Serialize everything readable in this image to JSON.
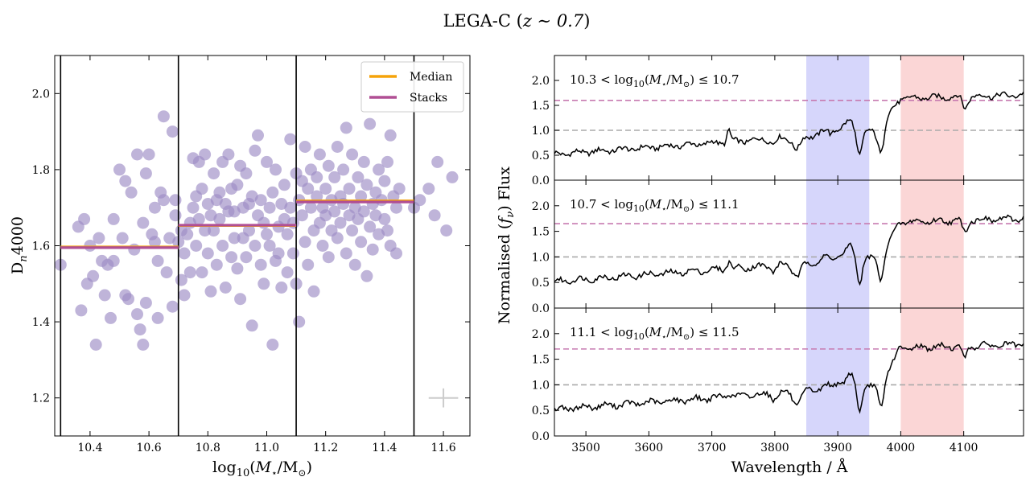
{
  "figure": {
    "title": "LEGA-C (z ∼ 0.7)"
  },
  "chart_data": [
    {
      "type": "scatter",
      "xlabel": "log10(M⋆/M⊙)",
      "ylabel": "Dn4000",
      "xlim": [
        10.28,
        11.69
      ],
      "ylim": [
        1.1,
        2.1
      ],
      "xticks": [
        10.4,
        10.6,
        10.8,
        11.0,
        11.2,
        11.4,
        11.6
      ],
      "yticks": [
        1.2,
        1.4,
        1.6,
        1.8,
        2.0
      ],
      "bin_edges": [
        10.3,
        10.7,
        11.1,
        11.5
      ],
      "points": [
        [
          10.3,
          1.55
        ],
        [
          10.36,
          1.65
        ],
        [
          10.37,
          1.43
        ],
        [
          10.38,
          1.67
        ],
        [
          10.39,
          1.5
        ],
        [
          10.4,
          1.6
        ],
        [
          10.41,
          1.52
        ],
        [
          10.42,
          1.34
        ],
        [
          10.43,
          1.62
        ],
        [
          10.44,
          1.56
        ],
        [
          10.45,
          1.47
        ],
        [
          10.46,
          1.55
        ],
        [
          10.47,
          1.41
        ],
        [
          10.48,
          1.56
        ],
        [
          10.48,
          1.67
        ],
        [
          10.5,
          1.8
        ],
        [
          10.51,
          1.62
        ],
        [
          10.52,
          1.47
        ],
        [
          10.52,
          1.77
        ],
        [
          10.53,
          1.46
        ],
        [
          10.54,
          1.74
        ],
        [
          10.55,
          1.59
        ],
        [
          10.56,
          1.42
        ],
        [
          10.56,
          1.84
        ],
        [
          10.57,
          1.38
        ],
        [
          10.58,
          1.66
        ],
        [
          10.58,
          1.34
        ],
        [
          10.59,
          1.45
        ],
        [
          10.59,
          1.79
        ],
        [
          10.6,
          1.84
        ],
        [
          10.61,
          1.63
        ],
        [
          10.62,
          1.61
        ],
        [
          10.62,
          1.7
        ],
        [
          10.63,
          1.56
        ],
        [
          10.63,
          1.41
        ],
        [
          10.64,
          1.74
        ],
        [
          10.65,
          1.94
        ],
        [
          10.65,
          1.72
        ],
        [
          10.66,
          1.53
        ],
        [
          10.67,
          1.62
        ],
        [
          10.68,
          1.9
        ],
        [
          10.68,
          1.44
        ],
        [
          10.69,
          1.72
        ],
        [
          10.69,
          1.68
        ],
        [
          10.7,
          1.61
        ],
        [
          10.71,
          1.64
        ],
        [
          10.71,
          1.51
        ],
        [
          10.72,
          1.47
        ],
        [
          10.72,
          1.58
        ],
        [
          10.73,
          1.63
        ],
        [
          10.74,
          1.53
        ],
        [
          10.74,
          1.66
        ],
        [
          10.75,
          1.83
        ],
        [
          10.75,
          1.7
        ],
        [
          10.76,
          1.6
        ],
        [
          10.76,
          1.73
        ],
        [
          10.77,
          1.67
        ],
        [
          10.77,
          1.82
        ],
        [
          10.78,
          1.75
        ],
        [
          10.78,
          1.53
        ],
        [
          10.79,
          1.64
        ],
        [
          10.79,
          1.84
        ],
        [
          10.8,
          1.71
        ],
        [
          10.8,
          1.58
        ],
        [
          10.81,
          1.68
        ],
        [
          10.81,
          1.48
        ],
        [
          10.82,
          1.79
        ],
        [
          10.82,
          1.64
        ],
        [
          10.83,
          1.72
        ],
        [
          10.83,
          1.55
        ],
        [
          10.84,
          1.67
        ],
        [
          10.84,
          1.74
        ],
        [
          10.85,
          1.82
        ],
        [
          10.85,
          1.6
        ],
        [
          10.86,
          1.49
        ],
        [
          10.86,
          1.71
        ],
        [
          10.87,
          1.69
        ],
        [
          10.87,
          1.84
        ],
        [
          10.88,
          1.57
        ],
        [
          10.88,
          1.75
        ],
        [
          10.89,
          1.62
        ],
        [
          10.89,
          1.69
        ],
        [
          10.9,
          1.76
        ],
        [
          10.9,
          1.54
        ],
        [
          10.91,
          1.81
        ],
        [
          10.91,
          1.46
        ],
        [
          10.92,
          1.7
        ],
        [
          10.92,
          1.62
        ],
        [
          10.93,
          1.79
        ],
        [
          10.93,
          1.57
        ],
        [
          10.94,
          1.71
        ],
        [
          10.94,
          1.64
        ],
        [
          10.95,
          1.39
        ],
        [
          10.95,
          1.73
        ],
        [
          10.96,
          1.85
        ],
        [
          10.96,
          1.6
        ],
        [
          10.97,
          1.89
        ],
        [
          10.97,
          1.68
        ],
        [
          10.98,
          1.55
        ],
        [
          10.98,
          1.72
        ],
        [
          10.99,
          1.66
        ],
        [
          10.99,
          1.5
        ],
        [
          11.0,
          1.82
        ],
        [
          11.0,
          1.63
        ],
        [
          11.01,
          1.7
        ],
        [
          11.01,
          1.6
        ],
        [
          11.02,
          1.34
        ],
        [
          11.02,
          1.74
        ],
        [
          11.03,
          1.56
        ],
        [
          11.03,
          1.8
        ],
        [
          11.04,
          1.65
        ],
        [
          11.04,
          1.58
        ],
        [
          11.05,
          1.71
        ],
        [
          11.05,
          1.49
        ],
        [
          11.06,
          1.76
        ],
        [
          11.06,
          1.67
        ],
        [
          11.07,
          1.53
        ],
        [
          11.07,
          1.63
        ],
        [
          11.08,
          1.88
        ],
        [
          11.08,
          1.7
        ],
        [
          11.09,
          1.58
        ],
        [
          11.09,
          1.66
        ],
        [
          11.1,
          1.79
        ],
        [
          11.1,
          1.5
        ],
        [
          11.11,
          1.72
        ],
        [
          11.11,
          1.4
        ],
        [
          11.12,
          1.68
        ],
        [
          11.12,
          1.77
        ],
        [
          11.13,
          1.61
        ],
        [
          11.13,
          1.86
        ],
        [
          11.14,
          1.75
        ],
        [
          11.14,
          1.55
        ],
        [
          11.15,
          1.7
        ],
        [
          11.15,
          1.8
        ],
        [
          11.16,
          1.64
        ],
        [
          11.16,
          1.48
        ],
        [
          11.17,
          1.73
        ],
        [
          11.17,
          1.78
        ],
        [
          11.18,
          1.66
        ],
        [
          11.18,
          1.84
        ],
        [
          11.19,
          1.7
        ],
        [
          11.19,
          1.6
        ],
        [
          11.2,
          1.75
        ],
        [
          11.2,
          1.68
        ],
        [
          11.21,
          1.81
        ],
        [
          11.21,
          1.57
        ],
        [
          11.22,
          1.72
        ],
        [
          11.22,
          1.64
        ],
        [
          11.23,
          1.78
        ],
        [
          11.23,
          1.69
        ],
        [
          11.24,
          1.86
        ],
        [
          11.24,
          1.62
        ],
        [
          11.25,
          1.73
        ],
        [
          11.25,
          1.66
        ],
        [
          11.26,
          1.8
        ],
        [
          11.26,
          1.71
        ],
        [
          11.27,
          1.58
        ],
        [
          11.27,
          1.91
        ],
        [
          11.28,
          1.68
        ],
        [
          11.28,
          1.75
        ],
        [
          11.29,
          1.64
        ],
        [
          11.29,
          1.84
        ],
        [
          11.3,
          1.7
        ],
        [
          11.3,
          1.55
        ],
        [
          11.31,
          1.78
        ],
        [
          11.31,
          1.67
        ],
        [
          11.32,
          1.73
        ],
        [
          11.32,
          1.61
        ],
        [
          11.33,
          1.69
        ],
        [
          11.33,
          1.82
        ],
        [
          11.34,
          1.76
        ],
        [
          11.34,
          1.52
        ],
        [
          11.35,
          1.65
        ],
        [
          11.35,
          1.92
        ],
        [
          11.36,
          1.71
        ],
        [
          11.36,
          1.59
        ],
        [
          11.37,
          1.74
        ],
        [
          11.37,
          1.68
        ],
        [
          11.38,
          1.8
        ],
        [
          11.38,
          1.63
        ],
        [
          11.39,
          1.72
        ],
        [
          11.4,
          1.67
        ],
        [
          11.4,
          1.77
        ],
        [
          11.41,
          1.82
        ],
        [
          11.41,
          1.64
        ],
        [
          11.42,
          1.89
        ],
        [
          11.42,
          1.6
        ],
        [
          11.43,
          1.73
        ],
        [
          11.44,
          1.7
        ],
        [
          11.44,
          1.58
        ],
        [
          11.45,
          1.75
        ],
        [
          11.5,
          1.7
        ],
        [
          11.52,
          1.72
        ],
        [
          11.55,
          1.75
        ],
        [
          11.57,
          1.68
        ],
        [
          11.58,
          1.82
        ],
        [
          11.61,
          1.64
        ],
        [
          11.63,
          1.78
        ]
      ],
      "series": [
        {
          "name": "Median",
          "color": "#f5a30a",
          "segments": [
            [
              10.3,
              10.7,
              1.597
            ],
            [
              10.7,
              11.1,
              1.653
            ],
            [
              11.1,
              11.5,
              1.718
            ]
          ]
        },
        {
          "name": "Stacks",
          "color": "#b04f94",
          "segments": [
            [
              10.3,
              10.7,
              1.595
            ],
            [
              10.7,
              11.1,
              1.654
            ],
            [
              11.1,
              11.5,
              1.715
            ]
          ]
        }
      ],
      "legend_position": "top-right",
      "point_color": "#9d8cc4",
      "errorbar": {
        "x": 11.6,
        "y": 1.2,
        "xerr": 0.05,
        "yerr": 0.025,
        "color": "#cccccc"
      }
    },
    {
      "type": "line",
      "xlabel": "Wavelength / Å",
      "ylabel": "Normalised (fν) Flux",
      "xlim": [
        3450,
        4195
      ],
      "xticks": [
        3500,
        3600,
        3700,
        3800,
        3900,
        4000,
        4100
      ],
      "yticks": [
        0.0,
        0.5,
        1.0,
        1.5,
        2.0
      ],
      "shaded_bands": [
        {
          "x0": 3850,
          "x1": 3950,
          "color": "#d6d6fb"
        },
        {
          "x0": 4000,
          "x1": 4100,
          "color": "#fbd6d6"
        }
      ],
      "panels": [
        {
          "label": "10.3 < log10(M⋆/M⊙) ≤ 10.7",
          "label_parts": [
            "10.3 < log",
            "10",
            "(M",
            "⋆",
            "/M",
            "⊙",
            ") ≤ 10.7"
          ],
          "ylim": [
            0,
            2.5
          ],
          "ref_line": 1.0,
          "stack_line": 1.6,
          "k": 0.0
        },
        {
          "label": "10.7 < log10(M⋆/M⊙) ≤ 11.1",
          "label_parts": [
            "10.7 < log",
            "10",
            "(M",
            "⋆",
            "/M",
            "⊙",
            ") ≤ 11.1"
          ],
          "ylim": [
            0,
            2.5
          ],
          "ref_line": 1.0,
          "stack_line": 1.65,
          "k": 0.5
        },
        {
          "label": "11.1 < log10(M⋆/M⊙) ≤ 11.5",
          "label_parts": [
            "11.1 < log",
            "10",
            "(M",
            "⋆",
            "/M",
            "⊙",
            ") ≤ 11.5"
          ],
          "ylim": [
            0,
            2.5
          ],
          "ref_line": 1.0,
          "stack_line": 1.7,
          "k": 1.0
        }
      ],
      "spectrum_color": "#000000",
      "ref_line_color": "#aaaaaa",
      "stack_line_color": "#c77ab0"
    }
  ]
}
